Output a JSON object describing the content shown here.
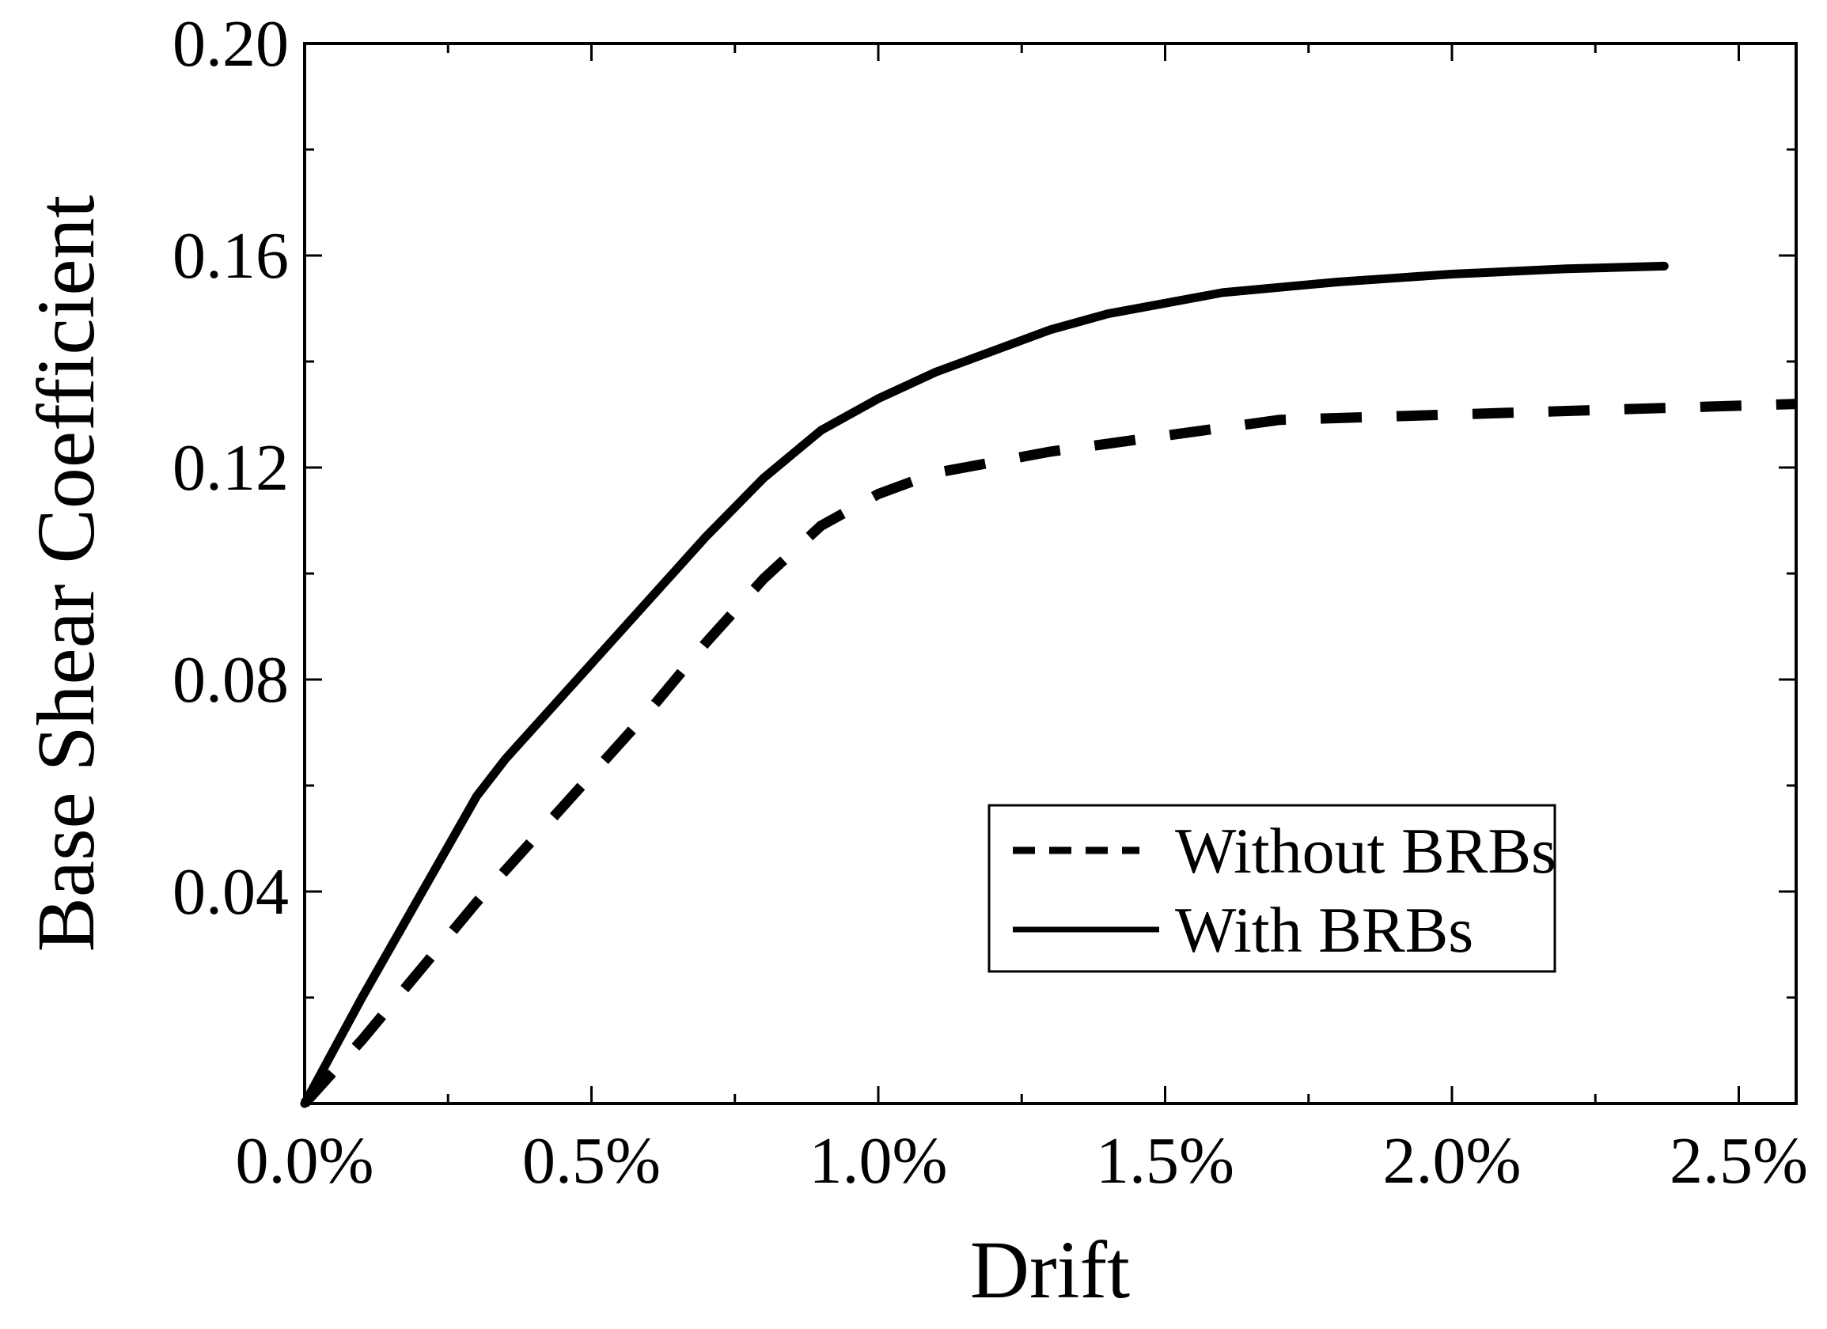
{
  "chart_data": {
    "type": "line",
    "title": "",
    "xlabel": "Drift",
    "ylabel": "Base Shear Coefficient",
    "xlim": [
      0,
      2.6
    ],
    "ylim": [
      0,
      0.2
    ],
    "x_unit": "%",
    "xticks": [
      0.0,
      0.5,
      1.0,
      1.5,
      2.0,
      2.5
    ],
    "xtick_labels": [
      "0.0%",
      "0.5%",
      "1.0%",
      "1.5%",
      "2.0%",
      "2.5%"
    ],
    "yticks": [
      0.04,
      0.08,
      0.12,
      0.16,
      0.2
    ],
    "ytick_labels": [
      "0.04",
      "0.08",
      "0.12",
      "0.16",
      "0.20"
    ],
    "grid": false,
    "legend_position": "lower-right",
    "series": [
      {
        "name": "Without BRBs",
        "style": "dashed",
        "color": "#000000",
        "x": [
          0.0,
          0.1,
          0.2,
          0.3,
          0.4,
          0.5,
          0.6,
          0.7,
          0.8,
          0.9,
          1.0,
          1.1,
          1.2,
          1.3,
          1.5,
          1.7,
          2.0,
          2.3,
          2.6
        ],
        "y": [
          0.0,
          0.012,
          0.025,
          0.038,
          0.05,
          0.062,
          0.074,
          0.087,
          0.099,
          0.109,
          0.115,
          0.119,
          0.121,
          0.123,
          0.126,
          0.129,
          0.13,
          0.131,
          0.132
        ]
      },
      {
        "name": "With BRBs",
        "style": "solid",
        "color": "#000000",
        "x": [
          0.0,
          0.1,
          0.2,
          0.3,
          0.35,
          0.4,
          0.5,
          0.6,
          0.7,
          0.8,
          0.9,
          1.0,
          1.1,
          1.2,
          1.3,
          1.4,
          1.5,
          1.6,
          1.8,
          2.0,
          2.2,
          2.37
        ],
        "y": [
          0.0,
          0.02,
          0.039,
          0.058,
          0.065,
          0.071,
          0.083,
          0.095,
          0.107,
          0.118,
          0.127,
          0.133,
          0.138,
          0.142,
          0.146,
          0.149,
          0.151,
          0.153,
          0.155,
          0.1565,
          0.1575,
          0.158
        ]
      }
    ]
  }
}
